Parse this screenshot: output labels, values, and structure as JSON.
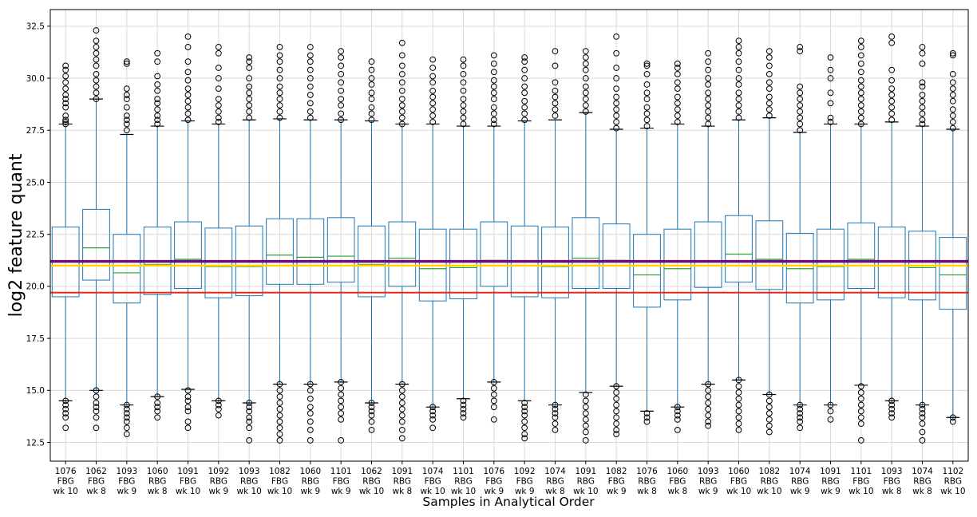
{
  "chart_data": {
    "type": "box",
    "title": "",
    "xlabel": "Samples in Analytical Order",
    "ylabel": "log2 feature quant",
    "ylim": [
      11.6,
      33.3
    ],
    "yticks": [
      12.5,
      15.0,
      17.5,
      20.0,
      22.5,
      25.0,
      27.5,
      30.0,
      32.5
    ],
    "ytick_labels": [
      "12.5",
      "15.0",
      "17.5",
      "20.0",
      "22.5",
      "25.0",
      "27.5",
      "30.0",
      "32.5"
    ],
    "grid": true,
    "colors": {
      "box": "#1f77b4",
      "median": "#2ca02c",
      "flier": "#000000",
      "grid": "#d9d9d9",
      "line_purple": "#6a0f7a",
      "line_yellow": "#ffd700",
      "line_red": "#e8261c"
    },
    "hlines": [
      {
        "y": 21.2,
        "color": "#6a0f7a",
        "width": 3.5
      },
      {
        "y": 21.0,
        "color": "#ffd700",
        "width": 2.5
      },
      {
        "y": 19.7,
        "color": "#e8261c",
        "width": 2
      }
    ],
    "samples": [
      {
        "label": [
          "1076",
          "FBG",
          "wk 10"
        ],
        "q1": 19.5,
        "median": 21.0,
        "q3": 22.85,
        "whislo": 14.5,
        "whishi": 27.8,
        "fliers_hi": [
          27.8,
          27.9,
          28.0,
          28.2,
          28.6,
          28.8,
          29.0,
          29.2,
          29.5,
          29.8,
          30.1,
          30.4,
          30.6
        ],
        "fliers_lo": [
          14.5,
          14.3,
          14.1,
          13.9,
          13.7,
          13.2
        ]
      },
      {
        "label": [
          "1062",
          "FBG",
          "wk 8"
        ],
        "q1": 20.3,
        "median": 21.85,
        "q3": 23.7,
        "whislo": 15.0,
        "whishi": 29.0,
        "fliers_hi": [
          29.0,
          29.3,
          29.6,
          29.9,
          30.2,
          30.6,
          30.9,
          31.2,
          31.5,
          31.8,
          32.3
        ],
        "fliers_lo": [
          15.0,
          14.7,
          14.4,
          14.2,
          14.0,
          13.7,
          13.2
        ]
      },
      {
        "label": [
          "1093",
          "FBG",
          "wk 9"
        ],
        "q1": 19.2,
        "median": 20.65,
        "q3": 22.5,
        "whislo": 14.3,
        "whishi": 27.3,
        "fliers_hi": [
          27.5,
          27.8,
          28.0,
          28.2,
          28.6,
          29.0,
          29.2,
          29.5,
          30.7,
          30.8
        ],
        "fliers_lo": [
          14.3,
          14.1,
          13.9,
          13.7,
          13.5,
          13.2,
          12.9
        ]
      },
      {
        "label": [
          "1060",
          "RBG",
          "wk 8"
        ],
        "q1": 19.6,
        "median": 21.05,
        "q3": 22.85,
        "whislo": 14.7,
        "whishi": 27.7,
        "fliers_hi": [
          27.8,
          28.0,
          28.2,
          28.5,
          28.8,
          29.0,
          29.4,
          29.7,
          30.1,
          30.8,
          31.2
        ],
        "fliers_lo": [
          14.7,
          14.4,
          14.2,
          14.0,
          13.7
        ]
      },
      {
        "label": [
          "1091",
          "FBG",
          "wk 10"
        ],
        "q1": 19.9,
        "median": 21.3,
        "q3": 23.1,
        "whislo": 15.05,
        "whishi": 27.95,
        "fliers_hi": [
          28.0,
          28.3,
          28.6,
          28.9,
          29.2,
          29.5,
          29.9,
          30.3,
          30.8,
          31.5,
          32.0
        ],
        "fliers_lo": [
          15.0,
          14.7,
          14.5,
          14.2,
          14.0,
          13.5,
          13.2
        ]
      },
      {
        "label": [
          "1092",
          "RBG",
          "wk 9"
        ],
        "q1": 19.45,
        "median": 20.95,
        "q3": 22.8,
        "whislo": 14.5,
        "whishi": 27.8,
        "fliers_hi": [
          27.9,
          28.1,
          28.4,
          28.7,
          29.0,
          29.5,
          30.0,
          30.5,
          31.2,
          31.5
        ],
        "fliers_lo": [
          14.5,
          14.3,
          14.1,
          13.8
        ]
      },
      {
        "label": [
          "1093",
          "RBG",
          "wk 10"
        ],
        "q1": 19.55,
        "median": 20.95,
        "q3": 22.9,
        "whislo": 14.4,
        "whishi": 28.0,
        "fliers_hi": [
          28.1,
          28.4,
          28.7,
          29.0,
          29.3,
          29.6,
          30.0,
          30.5,
          30.8,
          31.0
        ],
        "fliers_lo": [
          14.4,
          14.2,
          14.0,
          13.7,
          13.5,
          13.2,
          12.6
        ]
      },
      {
        "label": [
          "1082",
          "FBG",
          "wk 10"
        ],
        "q1": 20.1,
        "median": 21.5,
        "q3": 23.25,
        "whislo": 15.3,
        "whishi": 28.05,
        "fliers_hi": [
          28.1,
          28.4,
          28.7,
          29.0,
          29.3,
          29.6,
          30.0,
          30.4,
          30.8,
          31.1,
          31.5
        ],
        "fliers_lo": [
          15.3,
          15.0,
          14.7,
          14.4,
          14.1,
          13.8,
          13.5,
          13.2,
          12.9,
          12.6
        ]
      },
      {
        "label": [
          "1060",
          "RBG",
          "wk 9"
        ],
        "q1": 20.1,
        "median": 21.4,
        "q3": 23.25,
        "whislo": 15.3,
        "whishi": 28.0,
        "fliers_hi": [
          28.1,
          28.4,
          28.8,
          29.2,
          29.6,
          30.0,
          30.4,
          30.8,
          31.1,
          31.5
        ],
        "fliers_lo": [
          15.3,
          15.0,
          14.6,
          14.2,
          13.9,
          13.5,
          13.1,
          12.6
        ]
      },
      {
        "label": [
          "1101",
          "FBG",
          "wk 9"
        ],
        "q1": 20.2,
        "median": 21.45,
        "q3": 23.3,
        "whislo": 15.4,
        "whishi": 28.0,
        "fliers_hi": [
          28.0,
          28.3,
          28.7,
          29.0,
          29.4,
          29.8,
          30.2,
          30.6,
          31.0,
          31.3
        ],
        "fliers_lo": [
          15.4,
          15.1,
          14.8,
          14.5,
          14.2,
          13.9,
          13.6,
          12.6
        ]
      },
      {
        "label": [
          "1062",
          "RBG",
          "wk 10"
        ],
        "q1": 19.5,
        "median": 21.05,
        "q3": 22.9,
        "whislo": 14.4,
        "whishi": 27.95,
        "fliers_hi": [
          28.0,
          28.3,
          28.6,
          29.0,
          29.3,
          29.7,
          30.0,
          30.4,
          30.8
        ],
        "fliers_lo": [
          14.4,
          14.2,
          14.0,
          13.8,
          13.5,
          13.1
        ]
      },
      {
        "label": [
          "1091",
          "RBG",
          "wk 8"
        ],
        "q1": 20.0,
        "median": 21.35,
        "q3": 23.1,
        "whislo": 15.3,
        "whishi": 27.8,
        "fliers_hi": [
          27.8,
          28.1,
          28.4,
          28.7,
          29.0,
          29.4,
          29.8,
          30.2,
          30.6,
          31.1,
          31.7
        ],
        "fliers_lo": [
          15.3,
          15.0,
          14.7,
          14.4,
          14.1,
          13.8,
          13.5,
          13.1,
          12.7
        ]
      },
      {
        "label": [
          "1074",
          "FBG",
          "wk 10"
        ],
        "q1": 19.3,
        "median": 20.85,
        "q3": 22.75,
        "whislo": 14.2,
        "whishi": 27.8,
        "fliers_hi": [
          27.9,
          28.2,
          28.5,
          28.8,
          29.1,
          29.4,
          29.8,
          30.1,
          30.5,
          30.9
        ],
        "fliers_lo": [
          14.2,
          14.0,
          13.8,
          13.6,
          13.2
        ]
      },
      {
        "label": [
          "1101",
          "RBG",
          "wk 10"
        ],
        "q1": 19.4,
        "median": 20.9,
        "q3": 22.75,
        "whislo": 14.6,
        "whishi": 27.7,
        "fliers_hi": [
          27.8,
          28.1,
          28.4,
          28.7,
          29.0,
          29.4,
          29.8,
          30.2,
          30.6,
          30.9
        ],
        "fliers_lo": [
          14.5,
          14.3,
          14.1,
          13.9,
          13.7
        ]
      },
      {
        "label": [
          "1076",
          "FBG",
          "wk 9"
        ],
        "q1": 20.0,
        "median": 21.25,
        "q3": 23.1,
        "whislo": 15.4,
        "whishi": 27.7,
        "fliers_hi": [
          27.8,
          28.0,
          28.3,
          28.6,
          29.0,
          29.3,
          29.6,
          29.9,
          30.3,
          30.7,
          31.1
        ],
        "fliers_lo": [
          15.4,
          15.1,
          14.8,
          14.5,
          14.2,
          13.6
        ]
      },
      {
        "label": [
          "1092",
          "FBG",
          "wk 9"
        ],
        "q1": 19.5,
        "median": 21.0,
        "q3": 22.9,
        "whislo": 14.5,
        "whishi": 27.95,
        "fliers_hi": [
          28.0,
          28.3,
          28.6,
          28.9,
          29.3,
          29.6,
          30.0,
          30.4,
          30.8,
          31.0
        ],
        "fliers_lo": [
          14.4,
          14.2,
          14.0,
          13.8,
          13.5,
          13.2,
          12.9,
          12.7
        ]
      },
      {
        "label": [
          "1074",
          "RBG",
          "wk 8"
        ],
        "q1": 19.45,
        "median": 20.95,
        "q3": 22.85,
        "whislo": 14.3,
        "whishi": 28.0,
        "fliers_hi": [
          28.2,
          28.5,
          28.8,
          29.1,
          29.4,
          29.8,
          30.6,
          31.3
        ],
        "fliers_lo": [
          14.3,
          14.1,
          13.9,
          13.7,
          13.4,
          13.1
        ]
      },
      {
        "label": [
          "1091",
          "RBG",
          "wk 10"
        ],
        "q1": 19.9,
        "median": 21.35,
        "q3": 23.3,
        "whislo": 14.9,
        "whishi": 28.35,
        "fliers_hi": [
          28.4,
          28.7,
          29.0,
          29.3,
          29.6,
          30.0,
          30.4,
          30.7,
          31.0,
          31.3
        ],
        "fliers_lo": [
          14.8,
          14.5,
          14.2,
          13.9,
          13.6,
          13.3,
          13.0,
          12.6
        ]
      },
      {
        "label": [
          "1082",
          "FBG",
          "wk 9"
        ],
        "q1": 19.9,
        "median": 21.25,
        "q3": 23.0,
        "whislo": 15.2,
        "whishi": 27.55,
        "fliers_hi": [
          27.6,
          27.9,
          28.2,
          28.5,
          28.8,
          29.1,
          29.5,
          30.0,
          30.5,
          31.2,
          32.0
        ],
        "fliers_lo": [
          15.2,
          14.9,
          14.6,
          14.3,
          14.0,
          13.7,
          13.4,
          13.1,
          12.9
        ]
      },
      {
        "label": [
          "1076",
          "RBG",
          "wk 8"
        ],
        "q1": 19.0,
        "median": 20.55,
        "q3": 22.5,
        "whislo": 14.0,
        "whishi": 27.6,
        "fliers_hi": [
          27.7,
          28.0,
          28.3,
          28.6,
          29.0,
          29.3,
          29.7,
          30.2,
          30.6,
          30.7
        ],
        "fliers_lo": [
          13.9,
          13.7,
          13.5
        ]
      },
      {
        "label": [
          "1060",
          "FBG",
          "wk 8"
        ],
        "q1": 19.35,
        "median": 20.85,
        "q3": 22.75,
        "whislo": 14.2,
        "whishi": 27.8,
        "fliers_hi": [
          27.9,
          28.2,
          28.5,
          28.8,
          29.1,
          29.5,
          29.8,
          30.2,
          30.5,
          30.7
        ],
        "fliers_lo": [
          14.2,
          14.0,
          13.8,
          13.6,
          13.1
        ]
      },
      {
        "label": [
          "1093",
          "RBG",
          "wk 9"
        ],
        "q1": 19.95,
        "median": 21.0,
        "q3": 23.1,
        "whislo": 15.3,
        "whishi": 27.7,
        "fliers_hi": [
          27.8,
          28.1,
          28.4,
          28.7,
          29.0,
          29.3,
          29.7,
          30.0,
          30.4,
          30.8,
          31.2
        ],
        "fliers_lo": [
          15.3,
          15.0,
          14.7,
          14.4,
          14.1,
          13.8,
          13.5,
          13.3
        ]
      },
      {
        "label": [
          "1060",
          "FBG",
          "wk 10"
        ],
        "q1": 20.2,
        "median": 21.55,
        "q3": 23.4,
        "whislo": 15.5,
        "whishi": 28.0,
        "fliers_hi": [
          28.1,
          28.4,
          28.7,
          29.0,
          29.3,
          29.7,
          30.0,
          30.4,
          30.8,
          31.2,
          31.5,
          31.8
        ],
        "fliers_lo": [
          15.5,
          15.2,
          14.9,
          14.6,
          14.3,
          14.0,
          13.7,
          13.4,
          13.1
        ]
      },
      {
        "label": [
          "1082",
          "RBG",
          "wk 10"
        ],
        "q1": 19.85,
        "median": 21.3,
        "q3": 23.15,
        "whislo": 14.8,
        "whishi": 28.1,
        "fliers_hi": [
          28.2,
          28.5,
          28.8,
          29.1,
          29.5,
          29.8,
          30.2,
          30.6,
          31.0,
          31.3
        ],
        "fliers_lo": [
          14.8,
          14.5,
          14.2,
          13.9,
          13.6,
          13.3,
          13.0
        ]
      },
      {
        "label": [
          "1074",
          "RBG",
          "wk 9"
        ],
        "q1": 19.2,
        "median": 20.85,
        "q3": 22.55,
        "whislo": 14.3,
        "whishi": 27.4,
        "fliers_hi": [
          27.5,
          27.8,
          28.1,
          28.4,
          28.7,
          29.0,
          29.3,
          29.6,
          31.3,
          31.5
        ],
        "fliers_lo": [
          14.3,
          14.1,
          13.9,
          13.7,
          13.5,
          13.2
        ]
      },
      {
        "label": [
          "1091",
          "RBG",
          "wk 9"
        ],
        "q1": 19.35,
        "median": 20.95,
        "q3": 22.75,
        "whislo": 14.3,
        "whishi": 27.8,
        "fliers_hi": [
          27.9,
          28.1,
          28.8,
          29.3,
          30.0,
          30.4,
          31.0
        ],
        "fliers_lo": [
          14.3,
          14.0,
          13.6
        ]
      },
      {
        "label": [
          "1101",
          "FBG",
          "wk 10"
        ],
        "q1": 19.9,
        "median": 21.3,
        "q3": 23.05,
        "whislo": 15.25,
        "whishi": 27.8,
        "fliers_hi": [
          27.8,
          28.1,
          28.4,
          28.7,
          29.0,
          29.3,
          29.6,
          29.9,
          30.3,
          30.7,
          31.1,
          31.5,
          31.8
        ],
        "fliers_lo": [
          15.2,
          14.9,
          14.6,
          14.3,
          14.0,
          13.7,
          13.4,
          12.6
        ]
      },
      {
        "label": [
          "1093",
          "FBG",
          "wk 8"
        ],
        "q1": 19.45,
        "median": 21.0,
        "q3": 22.85,
        "whislo": 14.5,
        "whishi": 27.9,
        "fliers_hi": [
          28.0,
          28.3,
          28.6,
          28.9,
          29.2,
          29.5,
          29.9,
          30.4,
          31.7,
          32.0
        ],
        "fliers_lo": [
          14.5,
          14.3,
          14.1,
          13.9,
          13.7
        ]
      },
      {
        "label": [
          "1074",
          "RBG",
          "wk 8"
        ],
        "q1": 19.35,
        "median": 20.9,
        "q3": 22.65,
        "whislo": 14.3,
        "whishi": 27.7,
        "fliers_hi": [
          27.8,
          28.0,
          28.3,
          28.6,
          28.9,
          29.2,
          29.6,
          29.8,
          30.7,
          31.2,
          31.5
        ],
        "fliers_lo": [
          14.3,
          14.1,
          13.9,
          13.7,
          13.4,
          13.0,
          12.6
        ]
      },
      {
        "label": [
          "1102",
          "RBG",
          "wk 10"
        ],
        "q1": 18.9,
        "median": 20.55,
        "q3": 22.35,
        "whislo": 13.7,
        "whishi": 27.55,
        "fliers_hi": [
          27.6,
          27.9,
          28.2,
          28.5,
          28.9,
          29.2,
          29.5,
          29.8,
          30.2,
          31.1,
          31.2
        ],
        "fliers_lo": [
          13.7,
          13.5
        ]
      }
    ]
  }
}
